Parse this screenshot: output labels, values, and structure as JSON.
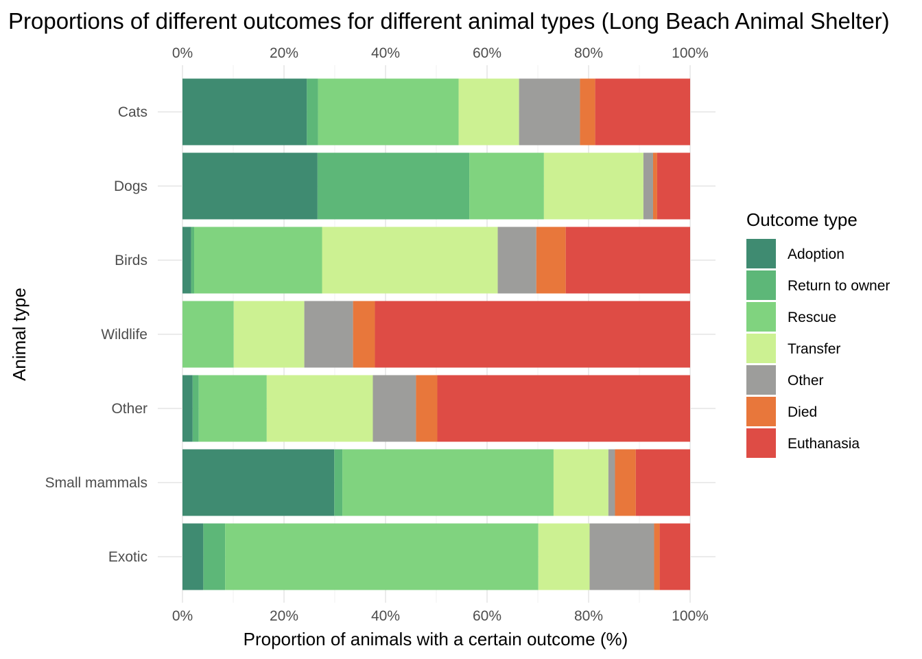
{
  "chart_data": {
    "type": "bar",
    "orientation": "horizontal",
    "stacked": true,
    "title": "Proportions of different outcomes for different animal types (Long Beach Animal Shelter)",
    "xlabel": "Proportion of animals with a certain outcome (%)",
    "ylabel": "Animal type",
    "xlim": [
      0,
      100
    ],
    "x_ticks": [
      "0%",
      "20%",
      "40%",
      "60%",
      "80%",
      "100%"
    ],
    "x_tick_values": [
      0,
      20,
      40,
      60,
      80,
      100
    ],
    "grid": true,
    "legend_position": "right",
    "legend_title": "Outcome type",
    "categories": [
      "Cats",
      "Dogs",
      "Birds",
      "Wildlife",
      "Other",
      "Small mammals",
      "Exotic"
    ],
    "series": [
      {
        "name": "Adoption",
        "color": "#3f8b71",
        "values": [
          24.5,
          26.6,
          1.7,
          0.0,
          2.0,
          29.9,
          4.1
        ]
      },
      {
        "name": "Return to owner",
        "color": "#5db778",
        "values": [
          2.2,
          29.9,
          0.6,
          0.0,
          1.2,
          1.6,
          4.3
        ]
      },
      {
        "name": "Rescue",
        "color": "#80d37f",
        "values": [
          27.7,
          14.7,
          25.2,
          10.1,
          13.4,
          41.6,
          61.7
        ]
      },
      {
        "name": "Transfer",
        "color": "#ccf192",
        "values": [
          11.9,
          19.6,
          34.6,
          13.9,
          20.9,
          10.8,
          10.1
        ]
      },
      {
        "name": "Other",
        "color": "#9d9d9b",
        "values": [
          12.0,
          1.9,
          7.6,
          9.6,
          8.5,
          1.3,
          12.7
        ]
      },
      {
        "name": "Died",
        "color": "#e8773b",
        "values": [
          3.0,
          0.8,
          5.8,
          4.3,
          4.2,
          4.1,
          1.1
        ]
      },
      {
        "name": "Euthanasia",
        "color": "#de4c45",
        "values": [
          18.7,
          6.5,
          24.5,
          62.1,
          49.8,
          10.7,
          6.0
        ]
      }
    ]
  }
}
